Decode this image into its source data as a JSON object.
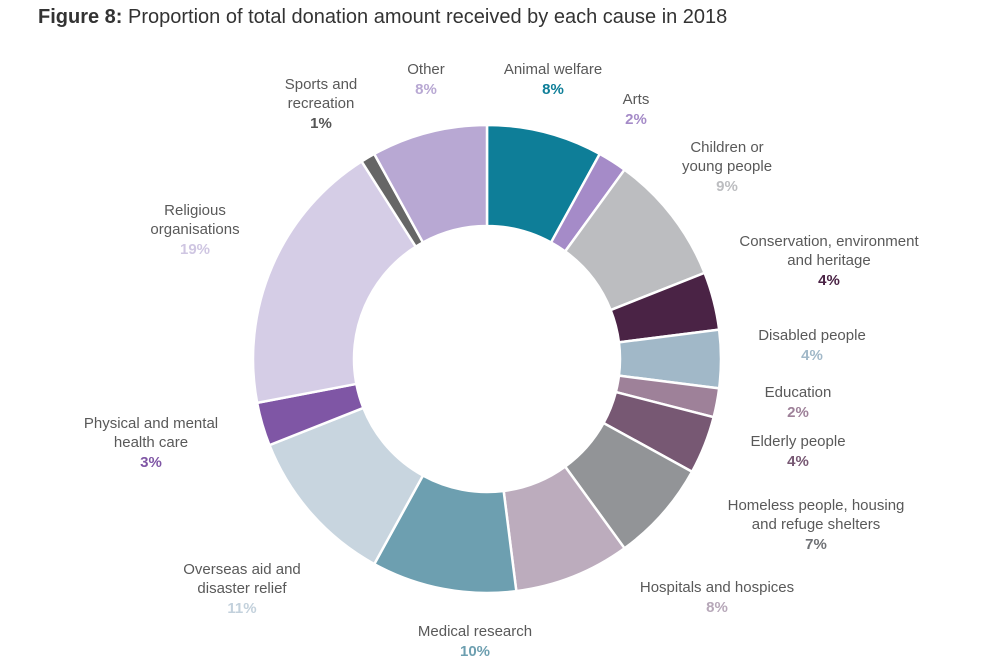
{
  "title": {
    "prefix": "Figure 8:",
    "text": "Proportion of total donation amount received by each cause in 2018"
  },
  "chart_data": {
    "type": "pie",
    "variant": "donut",
    "title": "Figure 8: Proportion of total donation amount received by each cause in 2018",
    "slices": [
      {
        "label": "Animal welfare",
        "value": 8,
        "pct_label": "8%",
        "color": "#0e7e98",
        "pct_color": "#0e7e98"
      },
      {
        "label": "Arts",
        "value": 2,
        "pct_label": "2%",
        "color": "#a58bc8",
        "pct_color": "#a58bc8"
      },
      {
        "label": "Children or young people",
        "value": 9,
        "pct_label": "9%",
        "color": "#bcbdc0",
        "pct_color": "#bcbdc0"
      },
      {
        "label": "Conservation, environment and heritage",
        "value": 4,
        "pct_label": "4%",
        "color": "#4a2345",
        "pct_color": "#4a2345"
      },
      {
        "label": "Disabled people",
        "value": 4,
        "pct_label": "4%",
        "color": "#a1b8c8",
        "pct_color": "#a1b8c8"
      },
      {
        "label": "Education",
        "value": 2,
        "pct_label": "2%",
        "color": "#9e8199",
        "pct_color": "#9e8199"
      },
      {
        "label": "Elderly people",
        "value": 4,
        "pct_label": "4%",
        "color": "#775873",
        "pct_color": "#775873"
      },
      {
        "label": "Homeless people, housing and refuge shelters",
        "value": 7,
        "pct_label": "7%",
        "color": "#929497",
        "pct_color": "#6f7175"
      },
      {
        "label": "Hospitals and hospices",
        "value": 8,
        "pct_label": "8%",
        "color": "#bcacbd",
        "pct_color": "#b7a8b9"
      },
      {
        "label": "Medical research",
        "value": 10,
        "pct_label": "10%",
        "color": "#6d9fb0",
        "pct_color": "#6d9fb0"
      },
      {
        "label": "Overseas aid and disaster relief",
        "value": 11,
        "pct_label": "11%",
        "color": "#c8d5df",
        "pct_color": "#c3d1dc"
      },
      {
        "label": "Physical and mental health care",
        "value": 3,
        "pct_label": "3%",
        "color": "#7f56a5",
        "pct_color": "#7f56a5"
      },
      {
        "label": "Religious organisations",
        "value": 19,
        "pct_label": "19%",
        "color": "#d5cde6",
        "pct_color": "#cfc6e2"
      },
      {
        "label": "Sports and recreation",
        "value": 1,
        "pct_label": "1%",
        "color": "#666666",
        "pct_color": "#555555"
      },
      {
        "label": "Other",
        "value": 8,
        "pct_label": "8%",
        "color": "#b8a8d3",
        "pct_color": "#b8a8d3"
      }
    ],
    "legend": "none",
    "start_angle_deg": 0,
    "direction": "clockwise"
  }
}
